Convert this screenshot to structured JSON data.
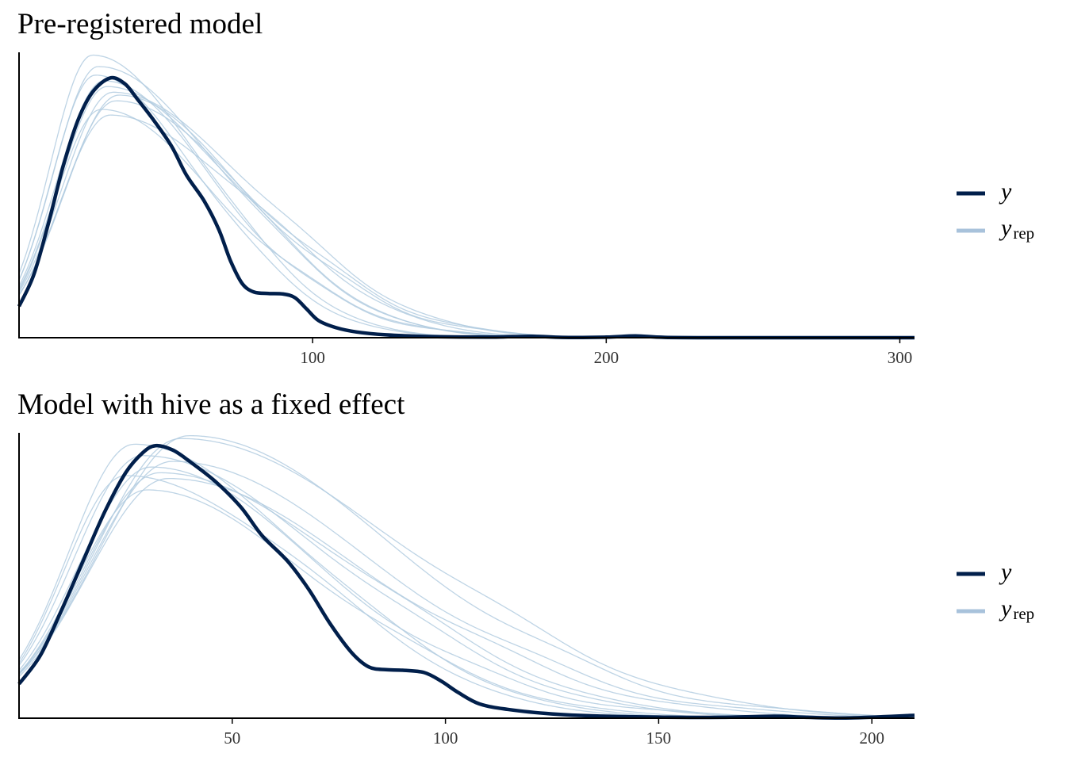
{
  "figure": {
    "colors": {
      "y": "#011f4b",
      "yrep": "#b3cde0",
      "legend_yrep": "#a8c2db",
      "axis": "#000000"
    }
  },
  "chart_data": [
    {
      "type": "line",
      "title": "Pre-registered model",
      "xlabel": "",
      "ylabel": "",
      "xlim": [
        0,
        305
      ],
      "ylim": [
        0,
        1
      ],
      "xticks": [
        100,
        200,
        300
      ],
      "xtick_labels": [
        "100",
        "200",
        "300"
      ],
      "legend": {
        "position": "right",
        "entries": [
          {
            "name": "y",
            "main": "y",
            "sub": ""
          },
          {
            "name": "yrep",
            "main": "y",
            "sub": "rep"
          }
        ]
      },
      "series": [
        {
          "name": "y",
          "role": "observed",
          "peak": 31,
          "peak_height": 0.91,
          "points": [
            [
              0,
              0.11
            ],
            [
              5,
              0.22
            ],
            [
              10,
              0.4
            ],
            [
              15,
              0.6
            ],
            [
              20,
              0.76
            ],
            [
              25,
              0.86
            ],
            [
              31,
              0.91
            ],
            [
              36,
              0.89
            ],
            [
              40,
              0.84
            ],
            [
              46,
              0.76
            ],
            [
              52,
              0.67
            ],
            [
              57,
              0.57
            ],
            [
              63,
              0.48
            ],
            [
              68,
              0.38
            ],
            [
              72,
              0.27
            ],
            [
              76,
              0.19
            ],
            [
              80,
              0.16
            ],
            [
              85,
              0.155
            ],
            [
              90,
              0.153
            ],
            [
              94,
              0.14
            ],
            [
              98,
              0.1
            ],
            [
              102,
              0.06
            ],
            [
              108,
              0.035
            ],
            [
              115,
              0.02
            ],
            [
              125,
              0.01
            ],
            [
              140,
              0.004
            ],
            [
              160,
              0.002
            ],
            [
              175,
              0.005
            ],
            [
              185,
              0.001
            ],
            [
              200,
              0.002
            ],
            [
              210,
              0.006
            ],
            [
              220,
              0.001
            ],
            [
              240,
              0.0
            ],
            [
              270,
              0.0
            ],
            [
              305,
              0.0
            ]
          ]
        },
        {
          "name": "yrep-1",
          "role": "replicate",
          "peak": 25,
          "peak_height": 0.99
        },
        {
          "name": "yrep-2",
          "role": "replicate",
          "peak": 27,
          "peak_height": 0.95
        },
        {
          "name": "yrep-3",
          "role": "replicate",
          "peak": 29,
          "peak_height": 0.9
        },
        {
          "name": "yrep-4",
          "role": "replicate",
          "peak": 30,
          "peak_height": 0.88
        },
        {
          "name": "yrep-5",
          "role": "replicate",
          "peak": 32,
          "peak_height": 0.86
        },
        {
          "name": "yrep-6",
          "role": "replicate",
          "peak": 34,
          "peak_height": 0.85
        },
        {
          "name": "yrep-7",
          "role": "replicate",
          "peak": 28,
          "peak_height": 0.8
        },
        {
          "name": "yrep-8",
          "role": "replicate",
          "peak": 31,
          "peak_height": 0.78
        },
        {
          "name": "yrep-9",
          "role": "replicate",
          "peak": 26,
          "peak_height": 0.92
        },
        {
          "name": "yrep-10",
          "role": "replicate",
          "peak": 33,
          "peak_height": 0.83
        }
      ]
    },
    {
      "type": "line",
      "title": "Model with hive as a fixed effect",
      "xlabel": "",
      "ylabel": "",
      "xlim": [
        0,
        210
      ],
      "ylim": [
        0,
        1
      ],
      "xticks": [
        50,
        100,
        150,
        200
      ],
      "xtick_labels": [
        "50",
        "100",
        "150",
        "200"
      ],
      "legend": {
        "position": "right",
        "entries": [
          {
            "name": "y",
            "main": "y",
            "sub": ""
          },
          {
            "name": "yrep",
            "main": "y",
            "sub": "rep"
          }
        ]
      },
      "series": [
        {
          "name": "y",
          "role": "observed",
          "peak": 31,
          "peak_height": 0.96,
          "points": [
            [
              0,
              0.12
            ],
            [
              5,
              0.22
            ],
            [
              10,
              0.38
            ],
            [
              15,
              0.55
            ],
            [
              20,
              0.72
            ],
            [
              25,
              0.86
            ],
            [
              29,
              0.93
            ],
            [
              32,
              0.955
            ],
            [
              36,
              0.94
            ],
            [
              40,
              0.9
            ],
            [
              46,
              0.83
            ],
            [
              52,
              0.74
            ],
            [
              57,
              0.64
            ],
            [
              63,
              0.55
            ],
            [
              68,
              0.45
            ],
            [
              73,
              0.33
            ],
            [
              78,
              0.23
            ],
            [
              82,
              0.18
            ],
            [
              86,
              0.17
            ],
            [
              90,
              0.168
            ],
            [
              95,
              0.16
            ],
            [
              99,
              0.13
            ],
            [
              103,
              0.09
            ],
            [
              108,
              0.05
            ],
            [
              115,
              0.03
            ],
            [
              125,
              0.015
            ],
            [
              135,
              0.008
            ],
            [
              150,
              0.004
            ],
            [
              165,
              0.003
            ],
            [
              177,
              0.007
            ],
            [
              185,
              0.003
            ],
            [
              195,
              0.001
            ],
            [
              210,
              0.01
            ]
          ]
        },
        {
          "name": "yrep-1",
          "role": "replicate",
          "peak": 27,
          "peak_height": 0.96
        },
        {
          "name": "yrep-2",
          "role": "replicate",
          "peak": 29,
          "peak_height": 0.92
        },
        {
          "name": "yrep-3",
          "role": "replicate",
          "peak": 31,
          "peak_height": 0.88
        },
        {
          "name": "yrep-4",
          "role": "replicate",
          "peak": 33,
          "peak_height": 0.86
        },
        {
          "name": "yrep-5",
          "role": "replicate",
          "peak": 38,
          "peak_height": 0.98
        },
        {
          "name": "yrep-6",
          "role": "replicate",
          "peak": 40,
          "peak_height": 0.99
        },
        {
          "name": "yrep-7",
          "role": "replicate",
          "peak": 36,
          "peak_height": 0.9
        },
        {
          "name": "yrep-8",
          "role": "replicate",
          "peak": 25,
          "peak_height": 0.85
        },
        {
          "name": "yrep-9",
          "role": "replicate",
          "peak": 30,
          "peak_height": 0.8
        },
        {
          "name": "yrep-10",
          "role": "replicate",
          "peak": 35,
          "peak_height": 0.84
        }
      ]
    }
  ]
}
